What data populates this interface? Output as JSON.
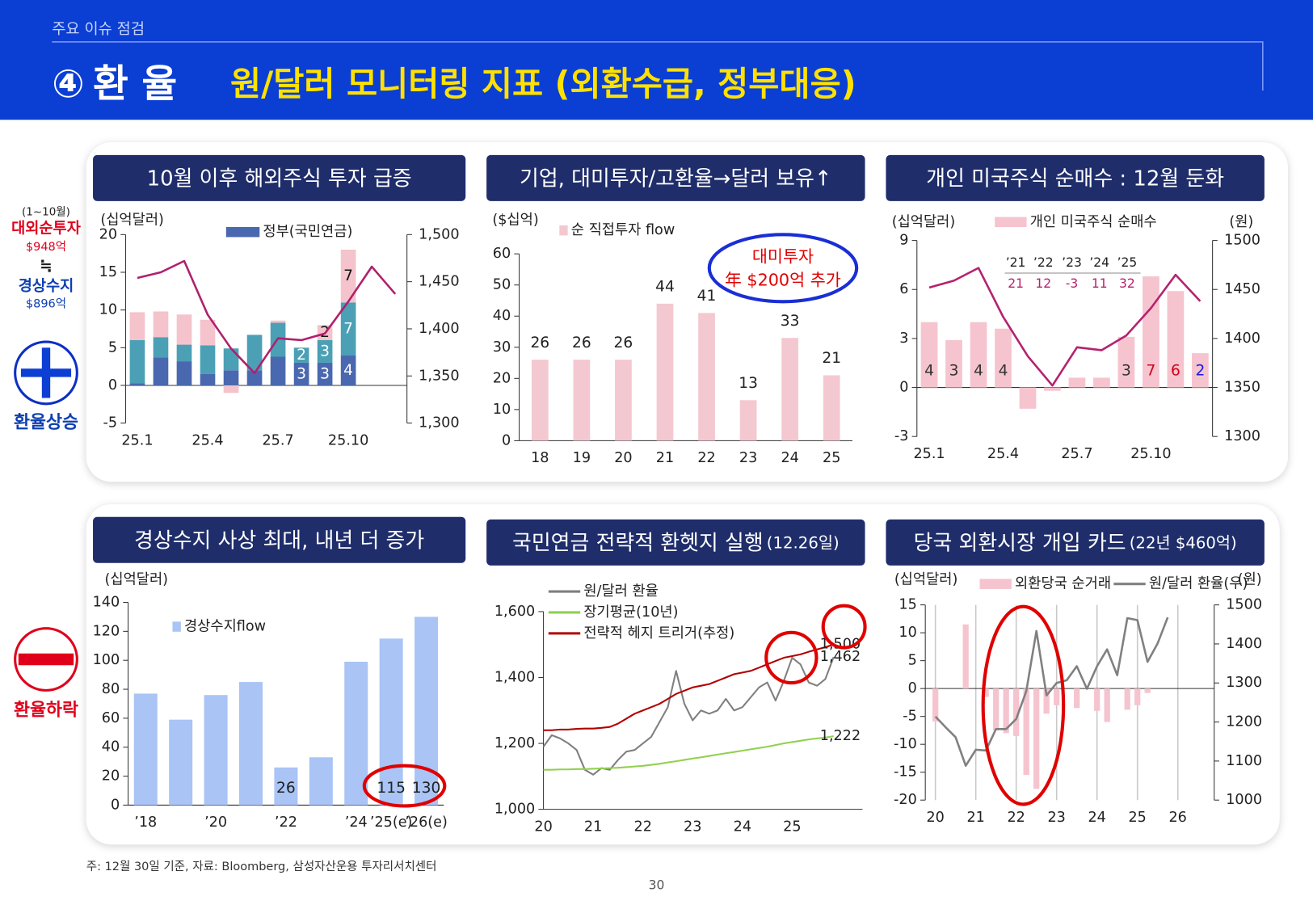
{
  "header": {
    "section": "주요 이슈 점검",
    "number": "④",
    "topic": "환 율",
    "title": "원/달러 모니터링 지표 (외환수급, 정부대응)"
  },
  "side": {
    "period": "(1~10월)",
    "label1": "대외순투자",
    "value1": "$948억",
    "approx": "≒",
    "label2": "경상수지",
    "value2": "$896억",
    "up": "환율상승",
    "down": "환율하락"
  },
  "chart_data": [
    {
      "type": "bar",
      "stacked": true,
      "title": "10월 이후 해외주식 투자 급증",
      "ylabel": "(십억달러)",
      "categories": [
        "25.1",
        null,
        null,
        "25.4",
        null,
        null,
        "25.7",
        null,
        null,
        "25.10",
        null,
        null
      ],
      "series": [
        {
          "name": "정부(국민연금)",
          "color": "#4a68b0",
          "label_color": "#ffffff",
          "values": [
            0.3,
            3.7,
            3.2,
            1.5,
            2.0,
            2.0,
            3.8,
            3,
            3,
            4,
            null,
            null
          ],
          "value_labels": [
            null,
            null,
            null,
            null,
            null,
            null,
            null,
            "3",
            "3",
            "4",
            null,
            null
          ]
        },
        {
          "color": "#4ba0b5",
          "label_color": "#ffffff",
          "values": [
            5.7,
            2.7,
            2.2,
            3.8,
            2.9,
            4.7,
            4.5,
            2,
            3,
            7,
            null,
            null
          ],
          "value_labels": [
            null,
            null,
            null,
            null,
            null,
            null,
            null,
            "2",
            "3",
            "7",
            null,
            null
          ]
        },
        {
          "color": "#f4c3cc",
          "label_color": "#111111",
          "values": [
            3.7,
            3.4,
            4.0,
            3.4,
            -1.0,
            0,
            0.3,
            0,
            2,
            7,
            null,
            null
          ],
          "value_labels": [
            null,
            null,
            null,
            null,
            null,
            null,
            null,
            null,
            "2",
            "7",
            null,
            null
          ]
        },
        {
          "type": "line",
          "axis": "y2",
          "color": "#b0206e",
          "values": [
            1454,
            1460,
            1472,
            1415,
            1379,
            1353,
            1390,
            1388,
            1395,
            1429,
            1466,
            1437
          ]
        }
      ],
      "ylim": [
        -5,
        20
      ],
      "yticks": [
        -5,
        0,
        5,
        10,
        15,
        20
      ],
      "y2lim": [
        1300,
        1500
      ],
      "y2ticks": [
        {
          "value": 1300,
          "label": "1,300"
        },
        {
          "value": 1350,
          "label": "1,350"
        },
        {
          "value": 1400,
          "label": "1,400"
        },
        {
          "value": 1450,
          "label": "1,450"
        },
        {
          "value": 1500,
          "label": "1,500"
        }
      ]
    },
    {
      "type": "bar",
      "title": "기업, 대미투자/고환율→달러 보유↑",
      "ylabel": "($십억)",
      "data_labels": true,
      "categories": [
        "18",
        "19",
        "20",
        "21",
        "22",
        "23",
        "24",
        "25"
      ],
      "series": [
        {
          "name": "순 직접투자 flow",
          "color": "#f4c8d0",
          "values": [
            26,
            26,
            26,
            44,
            41,
            13,
            33,
            21
          ]
        }
      ],
      "ylim": [
        0,
        60
      ],
      "yticks": [
        0,
        10,
        20,
        30,
        40,
        50,
        60
      ],
      "annotation": [
        "대미투자",
        "年 $200억 추가"
      ]
    },
    {
      "type": "bar",
      "title": "개인 미국주식 순매수 : 12월 둔화",
      "ylabel": "(십억달러)",
      "y2label": "(원)",
      "categories": [
        "25.1",
        null,
        null,
        "25.4",
        null,
        null,
        "25.7",
        null,
        null,
        "25.10",
        null,
        null
      ],
      "series": [
        {
          "name": "개인 미국주식 순매수",
          "color": "#f5c4cf",
          "values": [
            4.0,
            2.9,
            4.0,
            3.6,
            -1.3,
            -0.2,
            0.6,
            0.6,
            3.1,
            6.8,
            5.9,
            2.1
          ],
          "value_labels": [
            "4",
            "3",
            "4",
            "4",
            null,
            null,
            null,
            null,
            "3",
            "7",
            "6",
            "2"
          ],
          "value_label_colors": [
            "#333333",
            "#333333",
            "#333333",
            "#333333",
            null,
            null,
            null,
            null,
            "#333333",
            "#d0021b",
            "#d0021b",
            "#1a1adb"
          ]
        },
        {
          "type": "line",
          "axis": "y2",
          "color": "#b5226e",
          "values": [
            1452,
            1459,
            1472,
            1422,
            1382,
            1352,
            1391,
            1388,
            1403,
            1431,
            1465,
            1438
          ]
        }
      ],
      "ylim": [
        -3,
        9
      ],
      "yticks": [
        -3,
        0,
        3,
        6,
        9
      ],
      "y2lim": [
        1300,
        1500
      ],
      "y2ticks": [
        1300,
        1350,
        1400,
        1450,
        1500
      ],
      "table": {
        "headers": [
          "’21",
          "’22",
          "’23",
          "’24",
          "’25"
        ],
        "values": [
          21,
          12,
          -3,
          11,
          32
        ]
      }
    },
    {
      "type": "bar",
      "title": "경상수지 사상 최대, 내년 더 증가",
      "ylabel": "(십억달러)",
      "categories": [
        "’18",
        null,
        "’20",
        null,
        "’22",
        null,
        "’24",
        "’25(e)",
        "’26(e)"
      ],
      "series": [
        {
          "name": "경상수지flow",
          "color": "#a9c4f5",
          "values": [
            77,
            59,
            76,
            85,
            26,
            33,
            99,
            115,
            130
          ],
          "value_labels": [
            null,
            null,
            null,
            null,
            "26",
            null,
            null,
            "115",
            "130"
          ]
        }
      ],
      "ylim": [
        0,
        140
      ],
      "yticks": [
        0,
        20,
        40,
        60,
        80,
        100,
        120,
        140
      ]
    },
    {
      "type": "line",
      "title": "국민연금 전략적 환헷지 실행",
      "subtitle": "(12.26일)",
      "categories": [
        "20",
        null,
        null,
        null,
        null,
        null,
        "21",
        null,
        null,
        null,
        null,
        null,
        "22",
        null,
        null,
        null,
        null,
        null,
        "23",
        null,
        null,
        null,
        null,
        null,
        "24",
        null,
        null,
        null,
        null,
        null,
        "25",
        null,
        null,
        null,
        null,
        null
      ],
      "series": [
        {
          "name": "원/달러 환율",
          "color": "#7f7f7f",
          "values": [
            1190,
            1225,
            1215,
            1200,
            1180,
            1120,
            1105,
            1125,
            1120,
            1150,
            1175,
            1180,
            1200,
            1220,
            1265,
            1310,
            1420,
            1320,
            1270,
            1300,
            1290,
            1300,
            1335,
            1300,
            1310,
            1340,
            1370,
            1385,
            1330,
            1390,
            1460,
            1440,
            1385,
            1375,
            1395,
            1462
          ],
          "value_labels": [
            null,
            null,
            null,
            null,
            null,
            null,
            null,
            null,
            null,
            null,
            null,
            null,
            null,
            null,
            null,
            null,
            null,
            null,
            null,
            null,
            null,
            null,
            null,
            null,
            null,
            null,
            null,
            null,
            null,
            null,
            null,
            null,
            null,
            null,
            null,
            "1,462"
          ]
        },
        {
          "name": "장기평균(10년)",
          "color": "#92d050",
          "values": [
            1120,
            1120,
            1121,
            1121,
            1122,
            1122,
            1123,
            1124,
            1125,
            1126,
            1128,
            1130,
            1132,
            1135,
            1138,
            1142,
            1146,
            1150,
            1154,
            1158,
            1162,
            1166,
            1170,
            1174,
            1178,
            1182,
            1186,
            1190,
            1195,
            1200,
            1204,
            1208,
            1212,
            1215,
            1218,
            1222
          ],
          "value_labels": [
            null,
            null,
            null,
            null,
            null,
            null,
            null,
            null,
            null,
            null,
            null,
            null,
            null,
            null,
            null,
            null,
            null,
            null,
            null,
            null,
            null,
            null,
            null,
            null,
            null,
            null,
            null,
            null,
            null,
            null,
            null,
            null,
            null,
            null,
            null,
            "1,222"
          ]
        },
        {
          "name": "전략적 헤지 트리거(추정)",
          "color": "#b00000",
          "values": [
            1240,
            1240,
            1242,
            1242,
            1244,
            1245,
            1245,
            1247,
            1250,
            1260,
            1275,
            1290,
            1300,
            1310,
            1320,
            1335,
            1350,
            1360,
            1370,
            1375,
            1380,
            1390,
            1400,
            1410,
            1415,
            1420,
            1430,
            1440,
            1450,
            1460,
            1465,
            1470,
            1478,
            1485,
            1492,
            1500
          ],
          "value_labels": [
            null,
            null,
            null,
            null,
            null,
            null,
            null,
            null,
            null,
            null,
            null,
            null,
            null,
            null,
            null,
            null,
            null,
            null,
            null,
            null,
            null,
            null,
            null,
            null,
            null,
            null,
            null,
            null,
            null,
            null,
            null,
            null,
            null,
            null,
            null,
            "1,500"
          ]
        }
      ],
      "ylim": [
        1000,
        1600
      ],
      "yticks": [
        {
          "value": 1000,
          "label": "1,000"
        },
        {
          "value": 1200,
          "label": "1,200"
        },
        {
          "value": 1400,
          "label": "1,400"
        },
        {
          "value": 1600,
          "label": "1,600"
        }
      ]
    },
    {
      "type": "bar",
      "title": "당국 외환시장 개입 카드",
      "subtitle": "(22년 $460억)",
      "ylabel": "(십억달러)",
      "y2label": "(원)",
      "xgrid": true,
      "x": [
        20,
        20.25,
        20.5,
        20.75,
        21,
        21.25,
        21.5,
        21.75,
        22,
        22.25,
        22.5,
        22.75,
        23,
        23.25,
        23.5,
        23.75,
        24,
        24.25,
        24.5,
        24.75,
        25,
        25.25,
        25.5,
        25.75
      ],
      "series": [
        {
          "name": "외환당국 순거래",
          "color": "#f5c4cf",
          "values": [
            -5.9,
            0,
            0,
            11.5,
            0,
            -1.5,
            -7.5,
            -8,
            -8.5,
            -15.5,
            -18,
            -4.5,
            -3,
            0,
            -3.5,
            0,
            -4,
            -6,
            0,
            -3.8,
            -3,
            -0.8,
            0,
            0
          ]
        },
        {
          "name": "원/달러 환율(우)",
          "type": "line",
          "axis": "y2",
          "color": "#808080",
          "values": [
            1214,
            1187,
            1161,
            1088,
            1129,
            1127,
            1182,
            1182,
            1208,
            1279,
            1433,
            1268,
            1300,
            1307,
            1343,
            1285,
            1343,
            1386,
            1320,
            1466,
            1461,
            1354,
            1401,
            1468
          ]
        }
      ],
      "xlim": [
        19.75,
        26.9
      ],
      "xticks": [
        20,
        21,
        22,
        23,
        24,
        25,
        26
      ],
      "ylim": [
        -20,
        15
      ],
      "yticks": [
        -20,
        -15,
        -10,
        -5,
        0,
        5,
        10,
        15
      ],
      "y2lim": [
        1000,
        1500
      ],
      "y2ticks": [
        1000,
        1100,
        1200,
        1300,
        1400,
        1500
      ]
    }
  ],
  "footer": {
    "note": "주: 12월 30일 기준, 자료: Bloomberg, 삼성자산운용 투자리서치센터",
    "page": "30"
  }
}
